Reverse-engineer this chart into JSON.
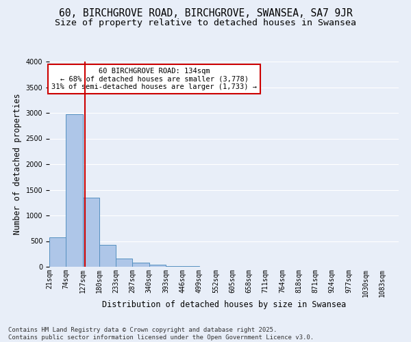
{
  "title_line1": "60, BIRCHGROVE ROAD, BIRCHGROVE, SWANSEA, SA7 9JR",
  "title_line2": "Size of property relative to detached houses in Swansea",
  "xlabel": "Distribution of detached houses by size in Swansea",
  "ylabel": "Number of detached properties",
  "bin_labels": [
    "21sqm",
    "74sqm",
    "127sqm",
    "180sqm",
    "233sqm",
    "287sqm",
    "340sqm",
    "393sqm",
    "446sqm",
    "499sqm",
    "552sqm",
    "605sqm",
    "658sqm",
    "711sqm",
    "764sqm",
    "818sqm",
    "871sqm",
    "924sqm",
    "977sqm",
    "1030sqm",
    "1083sqm"
  ],
  "bar_values": [
    580,
    2980,
    1350,
    430,
    155,
    80,
    45,
    18,
    8,
    4,
    2,
    1,
    1,
    0,
    0,
    0,
    0,
    0,
    0,
    0,
    0
  ],
  "bar_color": "#aec6e8",
  "bar_edge_color": "#5590c0",
  "background_color": "#e8eef8",
  "grid_color": "#ffffff",
  "vline_color": "#cc0000",
  "annotation_text": "60 BIRCHGROVE ROAD: 134sqm\n← 68% of detached houses are smaller (3,778)\n31% of semi-detached houses are larger (1,733) →",
  "annotation_box_color": "#cc0000",
  "annotation_bg": "#ffffff",
  "ylim": [
    0,
    4000
  ],
  "footnote": "Contains HM Land Registry data © Crown copyright and database right 2025.\nContains public sector information licensed under the Open Government Licence v3.0.",
  "title_fontsize": 10.5,
  "subtitle_fontsize": 9.5,
  "xlabel_fontsize": 8.5,
  "ylabel_fontsize": 8.5,
  "tick_fontsize": 7,
  "annot_fontsize": 7.5,
  "footnote_fontsize": 6.5
}
